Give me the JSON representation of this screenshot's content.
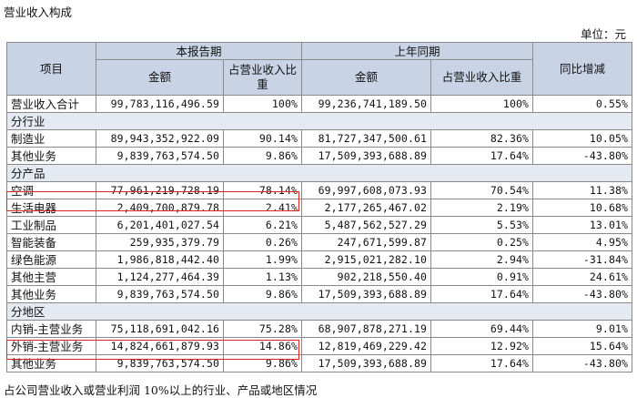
{
  "title": "营业收入构成",
  "unit": "单位：元",
  "headers": {
    "item": "项目",
    "current_period": "本报告期",
    "prior_period": "上年同期",
    "amount": "金额",
    "ratio_current": "占营业收入比重",
    "ratio_prior": "占营业收入比重",
    "yoy": "同比增减"
  },
  "total": {
    "label": "营业收入合计",
    "cur_amount": "99,783,116,496.59",
    "cur_ratio": "100%",
    "prev_amount": "99,236,741,189.50",
    "prev_ratio": "100%",
    "yoy": "0.55%"
  },
  "sections": [
    {
      "title": "分行业",
      "rows": [
        {
          "label": "制造业",
          "cur_amount": "89,943,352,922.09",
          "cur_ratio": "90.14%",
          "prev_amount": "81,727,347,500.61",
          "prev_ratio": "82.36%",
          "yoy": "10.05%"
        },
        {
          "label": "其他业务",
          "cur_amount": "9,839,763,574.50",
          "cur_ratio": "9.86%",
          "prev_amount": "17,509,393,688.89",
          "prev_ratio": "17.64%",
          "yoy": "-43.80%"
        }
      ]
    },
    {
      "title": "分产品",
      "rows": [
        {
          "label": "空调",
          "cur_amount": "77,961,219,728.19",
          "cur_ratio": "78.14%",
          "prev_amount": "69,997,608,073.93",
          "prev_ratio": "70.54%",
          "yoy": "11.38%"
        },
        {
          "label": "生活电器",
          "cur_amount": "2,409,700,879.78",
          "cur_ratio": "2.41%",
          "prev_amount": "2,177,265,467.02",
          "prev_ratio": "2.19%",
          "yoy": "10.68%"
        },
        {
          "label": "工业制品",
          "cur_amount": "6,201,401,027.54",
          "cur_ratio": "6.21%",
          "prev_amount": "5,487,562,527.29",
          "prev_ratio": "5.53%",
          "yoy": "13.01%"
        },
        {
          "label": "智能装备",
          "cur_amount": "259,935,379.79",
          "cur_ratio": "0.26%",
          "prev_amount": "247,671,599.87",
          "prev_ratio": "0.25%",
          "yoy": "4.95%"
        },
        {
          "label": "绿色能源",
          "cur_amount": "1,986,818,442.40",
          "cur_ratio": "1.99%",
          "prev_amount": "2,915,021,282.10",
          "prev_ratio": "2.94%",
          "yoy": "-31.84%"
        },
        {
          "label": "其他主营",
          "cur_amount": "1,124,277,464.39",
          "cur_ratio": "1.13%",
          "prev_amount": "902,218,550.40",
          "prev_ratio": "0.91%",
          "yoy": "24.61%"
        },
        {
          "label": "其他业务",
          "cur_amount": "9,839,763,574.50",
          "cur_ratio": "9.86%",
          "prev_amount": "17,509,393,688.89",
          "prev_ratio": "17.64%",
          "yoy": "-43.80%"
        }
      ]
    },
    {
      "title": "分地区",
      "rows": [
        {
          "label": "内销-主营业务",
          "cur_amount": "75,118,691,042.16",
          "cur_ratio": "75.28%",
          "prev_amount": "68,907,878,271.19",
          "prev_ratio": "69.44%",
          "yoy": "9.01%"
        },
        {
          "label": "外销-主营业务",
          "cur_amount": "14,824,661,879.93",
          "cur_ratio": "14.86%",
          "prev_amount": "12,819,469,229.42",
          "prev_ratio": "12.92%",
          "yoy": "15.64%"
        },
        {
          "label": "其他业务",
          "cur_amount": "9,839,763,574.50",
          "cur_ratio": "9.86%",
          "prev_amount": "17,509,393,688.89",
          "prev_ratio": "17.64%",
          "yoy": "-43.80%"
        }
      ]
    }
  ],
  "highlight_color": "#e0261c",
  "footer": "占公司营业收入或营业利润 10%以上的行业、产品或地区情况"
}
